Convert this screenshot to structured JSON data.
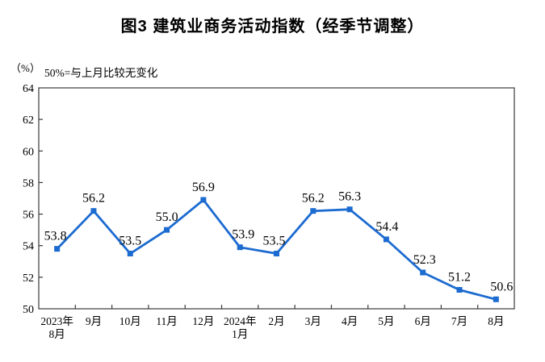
{
  "chart_data": {
    "type": "line",
    "title": "图3  建筑业商务活动指数（经季节调整）",
    "unit_label": "（%）",
    "annotation": "50%=与上月比较无变化",
    "categories": [
      "2023年\n8月",
      "9月",
      "10月",
      "11月",
      "12月",
      "2024年\n1月",
      "2月",
      "3月",
      "4月",
      "5月",
      "6月",
      "7月",
      "8月"
    ],
    "values": [
      53.8,
      56.2,
      53.5,
      55.0,
      56.9,
      53.9,
      53.5,
      56.2,
      56.3,
      54.4,
      52.3,
      51.2,
      50.6
    ],
    "value_labels": [
      "53.8",
      "56.2",
      "53.5",
      "55.0",
      "56.9",
      "53.9",
      "53.5",
      "56.2",
      "56.3",
      "54.4",
      "52.3",
      "51.2",
      "50.6"
    ],
    "xlabel": "",
    "ylabel": "%",
    "ylim": [
      50,
      64
    ],
    "ytick_step": 2,
    "yticks": [
      50,
      52,
      54,
      56,
      58,
      60,
      62,
      64
    ],
    "grid": false,
    "legend": null,
    "line_color": "#1C6BD0",
    "marker": "square",
    "text_color": "#000000",
    "frame_color": "#3a3a3a"
  }
}
